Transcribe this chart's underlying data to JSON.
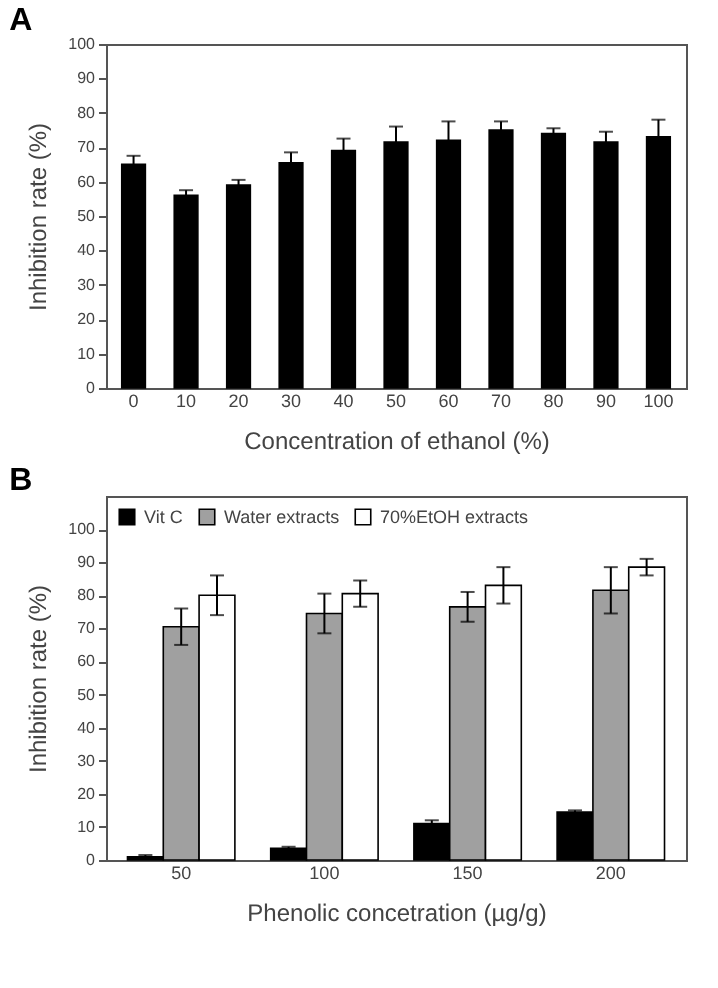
{
  "chart_data": [
    {
      "type": "bar",
      "title": "A",
      "xlabel": "Concentration of ethanol (%)",
      "ylabel": "Inhibition rate (%)",
      "categories": [
        "0",
        "10",
        "20",
        "30",
        "40",
        "50",
        "60",
        "70",
        "80",
        "90",
        "100"
      ],
      "values": [
        65,
        56,
        59,
        65.5,
        69,
        71.5,
        72,
        75,
        74,
        71.5,
        73
      ],
      "errors": [
        2.5,
        1.5,
        1.5,
        3,
        3.5,
        4.5,
        5.5,
        2.5,
        1.5,
        3,
        5
      ],
      "color": "#000000",
      "ylim": [
        0,
        100
      ],
      "yticks": [
        0,
        10,
        20,
        30,
        40,
        50,
        60,
        70,
        80,
        90,
        100
      ],
      "grid": false
    },
    {
      "type": "bar",
      "title": "B",
      "xlabel": "Phenolic concetration (µg/g)",
      "ylabel": "Inhibition rate (%)",
      "categories": [
        "50",
        "100",
        "150",
        "200"
      ],
      "series": [
        {
          "name": "Vit C",
          "color": "#000000",
          "values": [
            1,
            3.5,
            11,
            14.5
          ],
          "errors": [
            0.5,
            0.5,
            1,
            0.5
          ]
        },
        {
          "name": "Water extracts",
          "color": "#a0a0a0",
          "values": [
            70.5,
            74.5,
            76.5,
            81.5
          ],
          "errors": [
            5.5,
            6,
            4.5,
            7
          ]
        },
        {
          "name": "70%EtOH extracts",
          "color": "#ffffff",
          "values": [
            80,
            80.5,
            83,
            88.5
          ],
          "errors": [
            6,
            4,
            5.5,
            2.5
          ]
        }
      ],
      "ylim": [
        0,
        110
      ],
      "yticks": [
        0,
        10,
        20,
        30,
        40,
        50,
        60,
        70,
        80,
        90,
        100
      ],
      "grid": false,
      "legend": "top left"
    }
  ]
}
